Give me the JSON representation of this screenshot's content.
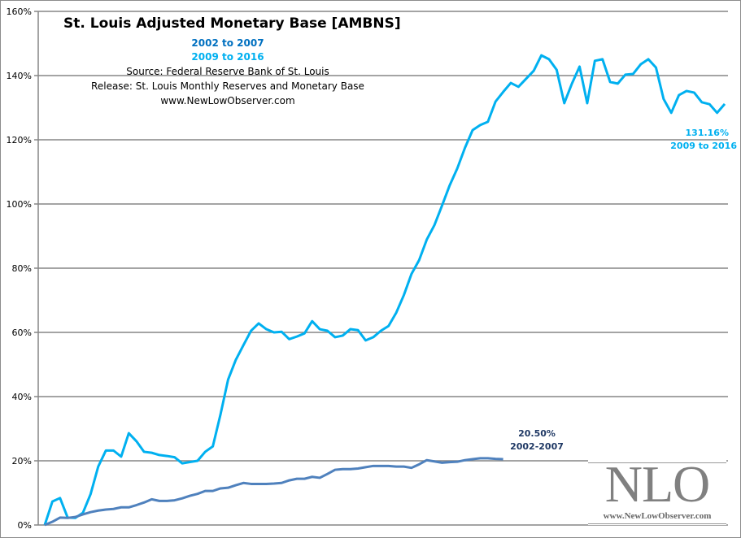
{
  "chart_data": {
    "type": "line",
    "title": "St. Louis Adjusted Monetary Base [AMBNS]",
    "subtitles": [
      "2002 to 2007",
      "2009 to 2016"
    ],
    "source": "Source: Federal Reserve Bank of St. Louis",
    "release": "Release: St. Louis Monthly Reserves and Monetary Base",
    "website": "www.NewLowObserver.com",
    "xlabel": "",
    "ylabel": "",
    "ylim": [
      0,
      160
    ],
    "y_ticks": [
      "0%",
      "20%",
      "40%",
      "60%",
      "80%",
      "100%",
      "120%",
      "140%",
      "160%"
    ],
    "grid": true,
    "legend": "none",
    "series": [
      {
        "color": "#00b0f0",
        "values": [
          0,
          7.3,
          8.4,
          2.3,
          2.2,
          3.8,
          9.6,
          18.2,
          23.2,
          23.2,
          21.3,
          28.6,
          26.1,
          22.8,
          22.5,
          21.8,
          21.5,
          21.1,
          19.2,
          19.6,
          20,
          22.8,
          24.5,
          34.4,
          45.3,
          51.4,
          56,
          60.5,
          62.8,
          61,
          60,
          60.2,
          57.9,
          58.7,
          59.7,
          63.5,
          61,
          60.5,
          58.5,
          59,
          61,
          60.7,
          57.5,
          58.5,
          60.5,
          62,
          66.1,
          71.6,
          78.2,
          82.5,
          88.9,
          93.4,
          99.5,
          105.8,
          111.1,
          117.5,
          123,
          124.6,
          125.6,
          131.9,
          134.9,
          137.7,
          136.5,
          139,
          141.5,
          146.3,
          145.1,
          141.8,
          131.4,
          137.5,
          142.8,
          131.4,
          144.6,
          145.1,
          138,
          137.5,
          140.3,
          140.5,
          143.5,
          145.1,
          142.5,
          132.7,
          128.4,
          133.9,
          135.2,
          134.7,
          131.7,
          131.1,
          128.4,
          131.16
        ],
        "end_label": [
          "131.16%",
          "2009 to 2016"
        ]
      },
      {
        "color": "#4f81bd",
        "values": [
          0,
          1,
          2.3,
          2.2,
          2.5,
          3.3,
          4,
          4.5,
          4.8,
          5,
          5.5,
          5.5,
          6.2,
          7,
          8,
          7.5,
          7.5,
          7.7,
          8.3,
          9.1,
          9.7,
          10.6,
          10.6,
          11.4,
          11.6,
          12.4,
          13.1,
          12.8,
          12.8,
          12.8,
          12.9,
          13.1,
          13.9,
          14.4,
          14.4,
          15,
          14.7,
          15.9,
          17.2,
          17.4,
          17.4,
          17.6,
          18,
          18.4,
          18.4,
          18.4,
          18.2,
          18.2,
          17.8,
          18.9,
          20.2,
          19.8,
          19.4,
          19.6,
          19.7,
          20.2,
          20.5,
          20.8,
          20.8,
          20.6,
          20.5
        ],
        "end_label": [
          "20.50%",
          "2002-2007"
        ]
      }
    ]
  },
  "logo": {
    "text": "NLO",
    "url": "www.NewLowObserver.com"
  }
}
